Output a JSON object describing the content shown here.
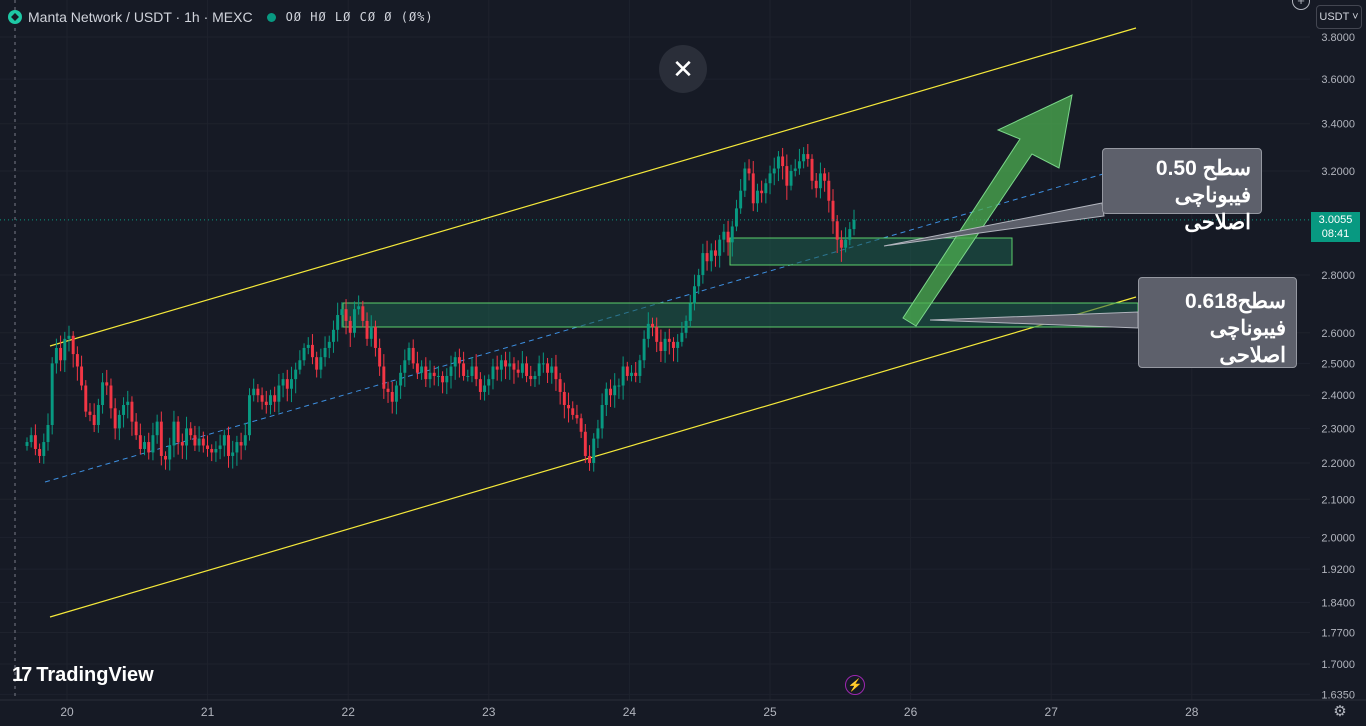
{
  "header": {
    "symbol": "Manta Network / USDT · 1h · MEXC",
    "ohlc": "OØ HØ LØ CØ Ø (Ø%)"
  },
  "toolbar": {
    "currency": "USDT",
    "close_glyph": "✕",
    "plus_glyph": "+"
  },
  "price_tag": {
    "price": "3.0055",
    "timer": "08:41"
  },
  "callouts": {
    "upper_line1": "سطح 0.50",
    "upper_line2": "فیبوناچی اصلاحی",
    "lower_line1": "سطح0.618",
    "lower_line2": "فیبوناچی اصلاحی"
  },
  "brand": {
    "mark": "17",
    "name": "TradingView"
  },
  "icons": {
    "close": "close-icon",
    "bolt": "lightning-icon",
    "settings": "gear-icon",
    "add": "plus-icon"
  },
  "colors": {
    "background": "#161a25",
    "grid": "#1e222d",
    "up": "#089981",
    "down": "#f23645",
    "channel": "#f5e93a",
    "midline": "#3d8fe0",
    "zone_fill": "#1d5e4c",
    "zone_border": "#5ccf6a",
    "arrow": "#4caf50"
  },
  "chart_data": {
    "type": "candlestick",
    "y_scale": "log",
    "ylim": [
      1.6,
      3.9
    ],
    "price_ticks": [
      "3.8000",
      "3.6000",
      "3.4000",
      "3.2000",
      "2.8000",
      "2.6000",
      "2.5000",
      "2.4000",
      "2.3000",
      "2.2000",
      "2.1000",
      "2.0000",
      "1.9200",
      "1.8400",
      "1.7700",
      "1.7000",
      "1.6350"
    ],
    "x_ticks": [
      "20",
      "21",
      "22",
      "23",
      "24",
      "25",
      "26",
      "27",
      "28"
    ],
    "x_tick_values": [
      20,
      21,
      22,
      23,
      24,
      25,
      26,
      27,
      28
    ],
    "xlim": [
      19.6,
      28.95
    ],
    "last_price": 3.0055,
    "closes": [
      2.26,
      2.28,
      2.24,
      2.22,
      2.26,
      2.31,
      2.5,
      2.55,
      2.51,
      2.58,
      2.59,
      2.53,
      2.49,
      2.43,
      2.35,
      2.34,
      2.31,
      2.37,
      2.44,
      2.43,
      2.36,
      2.3,
      2.34,
      2.37,
      2.38,
      2.32,
      2.28,
      2.24,
      2.26,
      2.23,
      2.28,
      2.32,
      2.22,
      2.21,
      2.25,
      2.32,
      2.26,
      2.25,
      2.3,
      2.28,
      2.25,
      2.27,
      2.25,
      2.24,
      2.23,
      2.24,
      2.25,
      2.28,
      2.22,
      2.23,
      2.26,
      2.25,
      2.28,
      2.4,
      2.42,
      2.4,
      2.38,
      2.37,
      2.4,
      2.38,
      2.43,
      2.45,
      2.42,
      2.45,
      2.48,
      2.51,
      2.55,
      2.56,
      2.52,
      2.48,
      2.52,
      2.55,
      2.57,
      2.61,
      2.66,
      2.68,
      2.64,
      2.6,
      2.68,
      2.69,
      2.64,
      2.58,
      2.62,
      2.55,
      2.49,
      2.42,
      2.41,
      2.38,
      2.43,
      2.47,
      2.51,
      2.55,
      2.5,
      2.47,
      2.49,
      2.45,
      2.47,
      2.46,
      2.46,
      2.44,
      2.46,
      2.49,
      2.52,
      2.5,
      2.46,
      2.46,
      2.49,
      2.45,
      2.41,
      2.43,
      2.45,
      2.49,
      2.48,
      2.51,
      2.49,
      2.5,
      2.48,
      2.47,
      2.5,
      2.46,
      2.45,
      2.46,
      2.5,
      2.5,
      2.47,
      2.49,
      2.45,
      2.41,
      2.37,
      2.36,
      2.34,
      2.33,
      2.29,
      2.22,
      2.2,
      2.27,
      2.3,
      2.37,
      2.42,
      2.4,
      2.43,
      2.43,
      2.49,
      2.46,
      2.47,
      2.46,
      2.51,
      2.58,
      2.63,
      2.62,
      2.57,
      2.54,
      2.58,
      2.57,
      2.55,
      2.57,
      2.6,
      2.64,
      2.7,
      2.76,
      2.8,
      2.88,
      2.85,
      2.89,
      2.87,
      2.93,
      2.96,
      2.92,
      2.98,
      3.05,
      3.12,
      3.21,
      3.19,
      3.07,
      3.12,
      3.11,
      3.15,
      3.19,
      3.21,
      3.26,
      3.22,
      3.14,
      3.2,
      3.21,
      3.24,
      3.27,
      3.25,
      3.16,
      3.13,
      3.19,
      3.16,
      3.08,
      3.0,
      2.93,
      2.9,
      2.93,
      2.97,
      3.0055
    ]
  }
}
